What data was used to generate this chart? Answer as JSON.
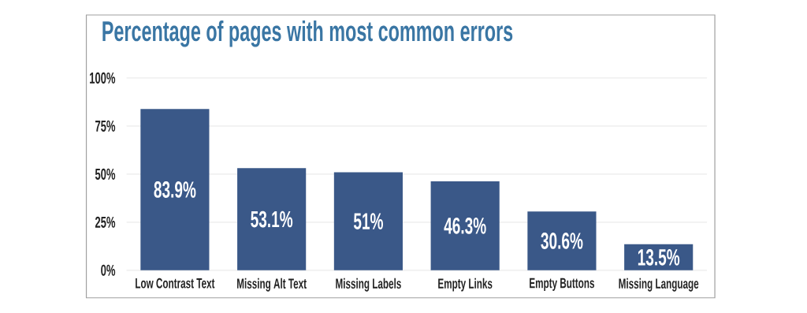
{
  "chart_data": {
    "type": "bar",
    "title": "Percentage of pages with most common errors",
    "categories": [
      "Low Contrast Text",
      "Missing Alt Text",
      "Missing Labels",
      "Empty Links",
      "Empty Buttons",
      "Missing Language"
    ],
    "values": [
      83.9,
      53.1,
      51,
      46.3,
      30.6,
      13.5
    ],
    "value_labels": [
      "83.9%",
      "53.1%",
      "51%",
      "46.3%",
      "30.6%",
      "13.5%"
    ],
    "color": "#3a5888",
    "ylim": [
      0,
      100
    ],
    "yticks": [
      {
        "value": 0,
        "label": "0%"
      },
      {
        "value": 25,
        "label": "25%"
      },
      {
        "value": 50,
        "label": "50%"
      },
      {
        "value": 75,
        "label": "75%"
      },
      {
        "value": 100,
        "label": "100%"
      }
    ],
    "grid": "y"
  }
}
